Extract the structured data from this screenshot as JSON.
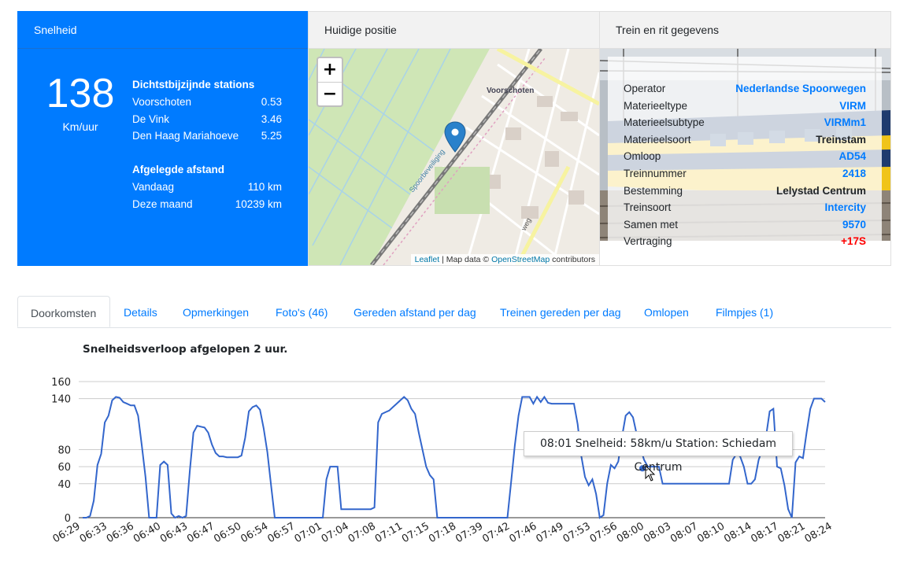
{
  "speed_card": {
    "header": "Snelheid",
    "speed": "138",
    "unit": "Km/uur",
    "nearest_title": "Dichtstbijzijnde stations",
    "stations": [
      {
        "name": "Voorschoten",
        "dist": "0.53"
      },
      {
        "name": "De Vink",
        "dist": "3.46"
      },
      {
        "name": "Den Haag Mariahoeve",
        "dist": "5.25"
      }
    ],
    "distance_title": "Afgelegde afstand",
    "distances": [
      {
        "label": "Vandaag",
        "value": "110 km"
      },
      {
        "label": "Deze maand",
        "value": "10239 km"
      }
    ]
  },
  "position_card": {
    "header": "Huidige positie",
    "zoom_in": "+",
    "zoom_out": "−",
    "map_label_town": "Voorschoten",
    "map_label_rail": "Spoorbeveiliging",
    "map_label_road": "weg",
    "attribution_leaflet": "Leaflet",
    "attribution_mid": " | Map data © ",
    "attribution_osm": "OpenStreetMap",
    "attribution_end": " contributors"
  },
  "train_card": {
    "header": "Trein en rit gegevens",
    "rows": [
      {
        "label": "Operator",
        "value": "Nederlandse Spoorwegen",
        "style": "link"
      },
      {
        "label": "Materieeltype",
        "value": "VIRM",
        "style": "link"
      },
      {
        "label": "Materieelsubtype",
        "value": "VIRMm1",
        "style": "link"
      },
      {
        "label": "Materieelsoort",
        "value": "Treinstam",
        "style": "dark"
      },
      {
        "label": "Omloop",
        "value": "AD54",
        "style": "link"
      },
      {
        "label": "Treinnummer",
        "value": "2418",
        "style": "link"
      },
      {
        "label": "Bestemming",
        "value": "Lelystad Centrum",
        "style": "dark"
      },
      {
        "label": "Treinsoort",
        "value": "Intercity",
        "style": "link"
      },
      {
        "label": "Samen met",
        "value": "9570",
        "style": "link"
      },
      {
        "label": "Vertraging",
        "value": "+17S",
        "style": "red"
      }
    ]
  },
  "tabs": [
    "Doorkomsten",
    "Details",
    "Opmerkingen",
    "Foto's (46)",
    "Gereden afstand per dag",
    "Treinen gereden per dag",
    "Omlopen",
    "Filmpjes (1)"
  ],
  "active_tab": "Doorkomsten",
  "tooltip": {
    "text": "08:01 Snelheid: 58km/u Station: Schiedam Centrum"
  },
  "chart_data": {
    "type": "line",
    "title": "Snelheidsverloop afgelopen 2 uur.",
    "xlabel": "",
    "ylabel": "",
    "ylim": [
      0,
      160
    ],
    "yticks": [
      0,
      40,
      60,
      80,
      140,
      160
    ],
    "xticks": [
      "06:29",
      "06:33",
      "06:36",
      "06:40",
      "06:43",
      "06:47",
      "06:50",
      "06:54",
      "06:57",
      "07:01",
      "07:04",
      "07:08",
      "07:11",
      "07:15",
      "07:18",
      "07:39",
      "07:42",
      "07:46",
      "07:49",
      "07:53",
      "07:56",
      "08:00",
      "08:03",
      "08:07",
      "08:10",
      "08:14",
      "08:17",
      "08:21",
      "08:24"
    ],
    "color": "#3366cc",
    "highlight": {
      "time": "08:01",
      "value": 58
    },
    "series": [
      {
        "values": [
          0,
          0,
          2,
          20,
          62,
          75,
          112,
          120,
          138,
          142,
          141,
          136,
          134,
          132,
          132,
          120,
          85,
          48,
          0,
          0,
          0,
          62,
          66,
          62,
          5,
          0,
          2,
          0,
          2,
          55,
          100,
          108,
          107,
          106,
          100,
          86,
          76,
          72,
          72,
          71,
          71,
          71,
          71,
          73,
          94,
          125,
          130,
          132,
          127,
          105,
          77,
          38,
          0,
          0,
          0,
          0,
          0,
          0,
          0,
          0,
          0,
          0,
          0,
          0,
          0,
          0,
          45,
          60,
          60,
          60,
          10,
          10,
          10,
          10,
          10,
          10,
          10,
          10,
          10,
          12,
          112,
          122,
          124,
          126,
          130,
          134,
          138,
          142,
          138,
          128,
          122,
          100,
          80,
          60,
          50,
          45,
          0,
          0,
          0,
          0,
          0,
          0,
          0,
          0,
          0,
          0,
          0,
          0,
          0,
          0,
          0,
          0,
          0,
          0,
          0,
          0,
          42,
          85,
          120,
          142,
          142,
          142,
          134,
          142,
          136,
          142,
          135,
          134,
          134,
          134,
          134,
          134,
          134,
          134,
          110,
          72,
          48,
          38,
          45,
          28,
          0,
          3,
          40,
          62,
          58,
          66,
          95,
          120,
          124,
          118,
          98,
          82,
          68,
          60,
          60,
          60,
          60,
          40,
          40,
          40,
          40,
          40,
          40,
          40,
          40,
          40,
          40,
          40,
          40,
          40,
          40,
          40,
          40,
          40,
          40,
          40,
          68,
          75,
          72,
          60,
          40,
          40,
          45,
          68,
          80,
          95,
          125,
          128,
          60,
          58,
          38,
          10,
          0,
          65,
          72,
          70,
          100,
          128,
          140,
          140,
          140,
          136
        ]
      }
    ]
  }
}
